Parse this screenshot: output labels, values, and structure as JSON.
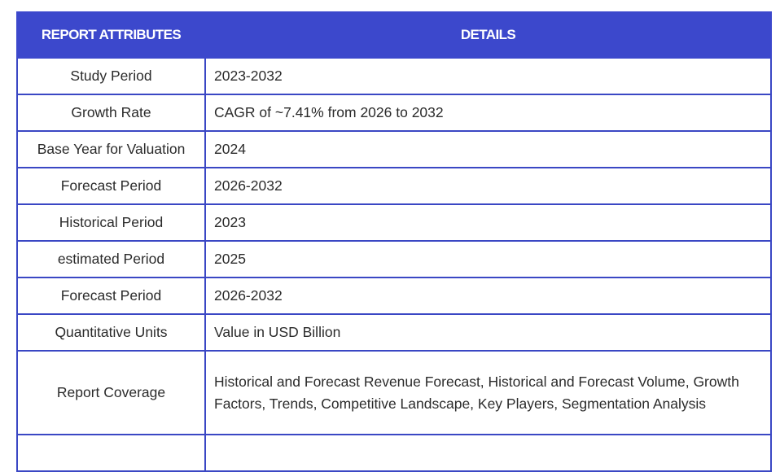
{
  "table": {
    "headers": {
      "attribute": "REPORT ATTRIBUTES",
      "details": "DETAILS"
    },
    "rows": [
      {
        "attribute": "Study Period",
        "details": "2023-2032"
      },
      {
        "attribute": "Growth Rate",
        "details": "CAGR of ~7.41% from 2026 to 2032"
      },
      {
        "attribute": "Base Year for Valuation",
        "details": "2024"
      },
      {
        "attribute": "Forecast Period",
        "details": "2026-2032"
      },
      {
        "attribute": "Historical Period",
        "details": "2023"
      },
      {
        "attribute": "estimated Period",
        "details": "2025"
      },
      {
        "attribute": "Forecast Period",
        "details": "2026-2032"
      },
      {
        "attribute": "Quantitative Units",
        "details": "Value in USD Billion"
      },
      {
        "attribute": "Report Coverage",
        "details": "Historical and Forecast Revenue Forecast, Historical and Forecast Volume, Growth Factors, Trends, Competitive Landscape, Key Players, Segmentation Analysis"
      },
      {
        "attribute": "",
        "details": ""
      }
    ]
  },
  "colors": {
    "header_bg": "#3c48cc",
    "header_text": "#ffffff",
    "border": "#3a47c4",
    "cell_text": "#2b2b2b"
  }
}
